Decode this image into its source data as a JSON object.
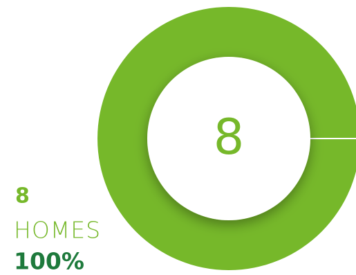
{
  "chart_data": {
    "type": "donut",
    "categories": [
      "HOMES"
    ],
    "values": [
      100
    ],
    "value_labels": [
      "100%"
    ],
    "counts": [
      8
    ],
    "total": 8,
    "colors": [
      "#76b82a"
    ]
  }
}
